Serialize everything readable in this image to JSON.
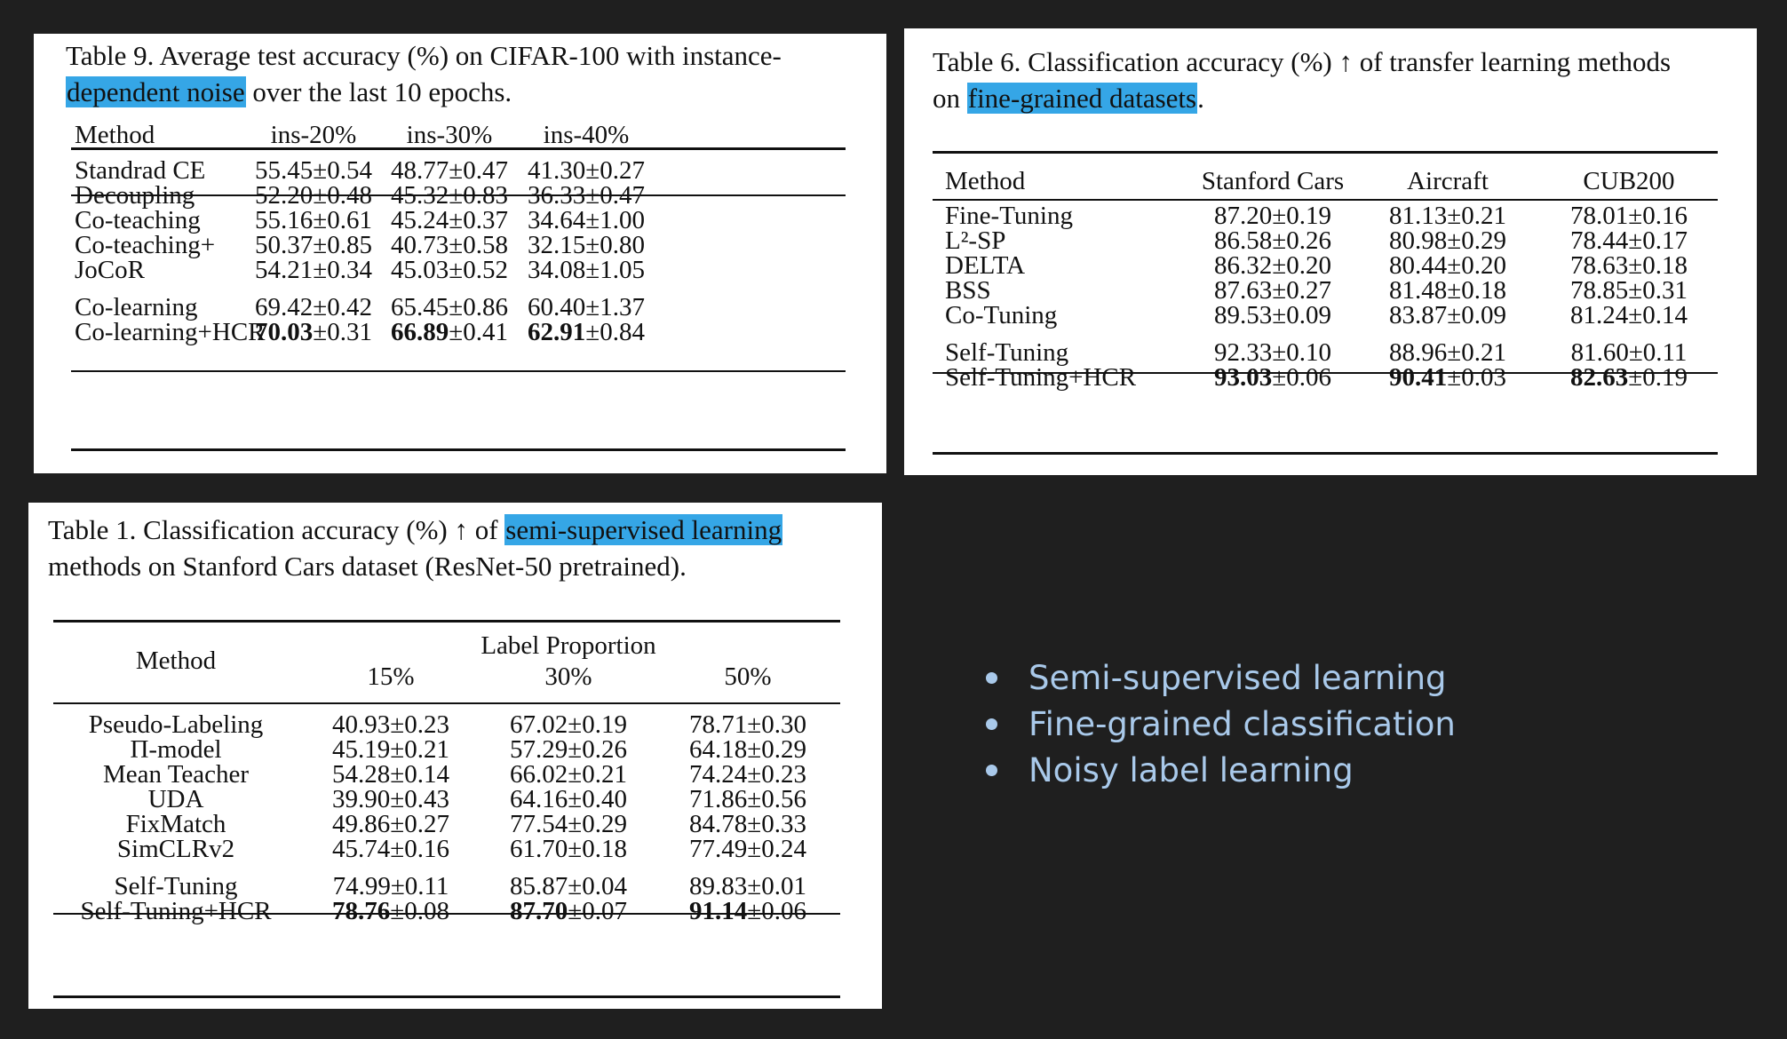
{
  "table9": {
    "caption_pre": "Table 9.  Average test accuracy (%) on CIFAR-100 with instance-",
    "caption_hl": "dependent noise",
    "caption_post": " over the last 10 epochs.",
    "headers": [
      "Method",
      "ins-20%",
      "ins-30%",
      "ins-40%"
    ],
    "rows": [
      {
        "method": "Standrad CE",
        "v": [
          "55.45",
          "48.77",
          "41.30"
        ],
        "e": [
          "0.54",
          "0.47",
          "0.27"
        ],
        "bold": [
          false,
          false,
          false
        ]
      },
      {
        "method": "Decoupling",
        "v": [
          "52.20",
          "45.32",
          "36.33"
        ],
        "e": [
          "0.48",
          "0.83",
          "0.47"
        ],
        "bold": [
          false,
          false,
          false
        ]
      },
      {
        "method": "Co-teaching",
        "v": [
          "55.16",
          "45.24",
          "34.64"
        ],
        "e": [
          "0.61",
          "0.37",
          "1.00"
        ],
        "bold": [
          false,
          false,
          false
        ]
      },
      {
        "method": "Co-teaching+",
        "v": [
          "50.37",
          "40.73",
          "32.15"
        ],
        "e": [
          "0.85",
          "0.58",
          "0.80"
        ],
        "bold": [
          false,
          false,
          false
        ]
      },
      {
        "method": "JoCoR",
        "v": [
          "54.21",
          "45.03",
          "34.08"
        ],
        "e": [
          "0.34",
          "0.52",
          "1.05"
        ],
        "bold": [
          false,
          false,
          false
        ]
      },
      {
        "method": "Co-learning",
        "v": [
          "69.42",
          "65.45",
          "60.40"
        ],
        "e": [
          "0.42",
          "0.86",
          "1.37"
        ],
        "bold": [
          false,
          false,
          false
        ]
      },
      {
        "method": "Co-learning+HCR",
        "v": [
          "70.03",
          "66.89",
          "62.91"
        ],
        "e": [
          "0.31",
          "0.41",
          "0.84"
        ],
        "bold": [
          true,
          true,
          true
        ]
      }
    ]
  },
  "table6": {
    "caption_line1": "Table 6.  Classification accuracy (%) ↑ of transfer learning methods",
    "caption_pre": "on ",
    "caption_hl": "fine-grained datasets",
    "caption_post": ".",
    "headers": [
      "Method",
      "Stanford Cars",
      "Aircraft",
      "CUB200"
    ],
    "rows": [
      {
        "method": "Fine-Tuning",
        "v": [
          "87.20",
          "81.13",
          "78.01"
        ],
        "e": [
          "0.19",
          "0.21",
          "0.16"
        ],
        "bold": [
          false,
          false,
          false
        ]
      },
      {
        "method": "L²-SP",
        "v": [
          "86.58",
          "80.98",
          "78.44"
        ],
        "e": [
          "0.26",
          "0.29",
          "0.17"
        ],
        "bold": [
          false,
          false,
          false
        ]
      },
      {
        "method": "DELTA",
        "v": [
          "86.32",
          "80.44",
          "78.63"
        ],
        "e": [
          "0.20",
          "0.20",
          "0.18"
        ],
        "bold": [
          false,
          false,
          false
        ]
      },
      {
        "method": "BSS",
        "v": [
          "87.63",
          "81.48",
          "78.85"
        ],
        "e": [
          "0.27",
          "0.18",
          "0.31"
        ],
        "bold": [
          false,
          false,
          false
        ]
      },
      {
        "method": "Co-Tuning",
        "v": [
          "89.53",
          "83.87",
          "81.24"
        ],
        "e": [
          "0.09",
          "0.09",
          "0.14"
        ],
        "bold": [
          false,
          false,
          false
        ]
      },
      {
        "method": "Self-Tuning",
        "v": [
          "92.33",
          "88.96",
          "81.60"
        ],
        "e": [
          "0.10",
          "0.21",
          "0.11"
        ],
        "bold": [
          false,
          false,
          false
        ]
      },
      {
        "method": "Self-Tuning+HCR",
        "v": [
          "93.03",
          "90.41",
          "82.63"
        ],
        "e": [
          "0.06",
          "0.03",
          "0.19"
        ],
        "bold": [
          true,
          true,
          true
        ]
      }
    ]
  },
  "table1": {
    "caption_pre": "Table 1.  Classification accuracy (%) ↑ of ",
    "caption_hl": "semi-supervised learning",
    "caption_line2": "methods on Stanford Cars dataset (ResNet-50 pretrained).",
    "method_header": "Method",
    "group_header": "Label Proportion",
    "headers": [
      "15%",
      "30%",
      "50%"
    ],
    "rows": [
      {
        "method": "Pseudo-Labeling",
        "v": [
          "40.93",
          "67.02",
          "78.71"
        ],
        "e": [
          "0.23",
          "0.19",
          "0.30"
        ],
        "bold": [
          false,
          false,
          false
        ]
      },
      {
        "method": "Π-model",
        "v": [
          "45.19",
          "57.29",
          "64.18"
        ],
        "e": [
          "0.21",
          "0.26",
          "0.29"
        ],
        "bold": [
          false,
          false,
          false
        ]
      },
      {
        "method": "Mean Teacher",
        "v": [
          "54.28",
          "66.02",
          "74.24"
        ],
        "e": [
          "0.14",
          "0.21",
          "0.23"
        ],
        "bold": [
          false,
          false,
          false
        ]
      },
      {
        "method": "UDA",
        "v": [
          "39.90",
          "64.16",
          "71.86"
        ],
        "e": [
          "0.43",
          "0.40",
          "0.56"
        ],
        "bold": [
          false,
          false,
          false
        ]
      },
      {
        "method": "FixMatch",
        "v": [
          "49.86",
          "77.54",
          "84.78"
        ],
        "e": [
          "0.27",
          "0.29",
          "0.33"
        ],
        "bold": [
          false,
          false,
          false
        ]
      },
      {
        "method": "SimCLRv2",
        "v": [
          "45.74",
          "61.70",
          "77.49"
        ],
        "e": [
          "0.16",
          "0.18",
          "0.24"
        ],
        "bold": [
          false,
          false,
          false
        ]
      },
      {
        "method": "Self-Tuning",
        "v": [
          "74.99",
          "85.87",
          "89.83"
        ],
        "e": [
          "0.11",
          "0.04",
          "0.01"
        ],
        "bold": [
          false,
          false,
          false
        ]
      },
      {
        "method": "Self-Tuning+HCR",
        "v": [
          "78.76",
          "87.70",
          "91.14"
        ],
        "e": [
          "0.08",
          "0.07",
          "0.06"
        ],
        "bold": [
          true,
          true,
          true
        ]
      }
    ]
  },
  "bullets": [
    "Semi-supervised learning",
    "Fine-grained classification",
    "Noisy label learning"
  ],
  "colors": {
    "background": "#1f1f1f",
    "highlight": "#35a6e6",
    "bullet_text": "#a9c9ea"
  }
}
